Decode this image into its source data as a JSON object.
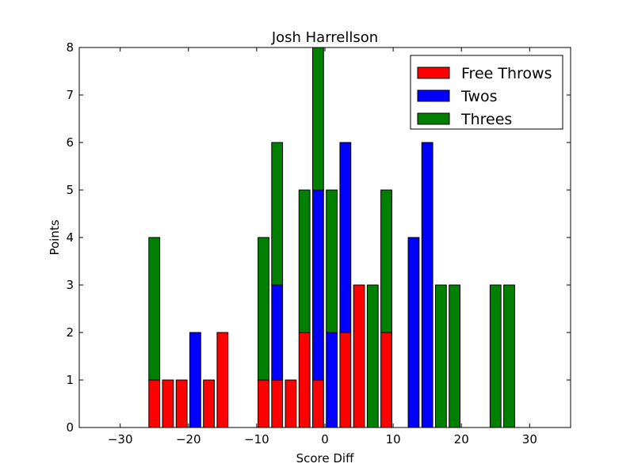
{
  "chart_data": {
    "type": "bar",
    "stacked": true,
    "title": "Josh Harrellson",
    "xlabel": "Score Diff",
    "ylabel": "Points",
    "xlim": [
      -36,
      36
    ],
    "ylim": [
      0,
      8
    ],
    "xticks": [
      -30,
      -20,
      -10,
      0,
      10,
      20,
      30
    ],
    "xtick_labels": [
      "−30",
      "−20",
      "−10",
      "0",
      "10",
      "20",
      "30"
    ],
    "yticks": [
      0,
      1,
      2,
      3,
      4,
      5,
      6,
      7,
      8
    ],
    "ytick_labels": [
      "0",
      "1",
      "2",
      "3",
      "4",
      "5",
      "6",
      "7",
      "8"
    ],
    "x": [
      -35,
      -33,
      -31,
      -29,
      -27,
      -25,
      -23,
      -21,
      -19,
      -17,
      -15,
      -13,
      -11,
      -9,
      -7,
      -5,
      -3,
      -1,
      1,
      3,
      5,
      7,
      9,
      11,
      13,
      15,
      17,
      19,
      21,
      23,
      25,
      27,
      29,
      31,
      33,
      35
    ],
    "series": [
      {
        "name": "Free Throws",
        "color": "#ff0000",
        "values": [
          0,
          0,
          0,
          0,
          0,
          1,
          1,
          1,
          0,
          1,
          2,
          0,
          0,
          1,
          1,
          1,
          2,
          1,
          0,
          2,
          3,
          0,
          2,
          0,
          0,
          0,
          0,
          0,
          0,
          0,
          0,
          0,
          0,
          0,
          0,
          0
        ]
      },
      {
        "name": "Twos",
        "color": "#0000ff",
        "values": [
          0,
          0,
          0,
          0,
          0,
          0,
          0,
          0,
          2,
          0,
          0,
          0,
          0,
          0,
          2,
          0,
          0,
          4,
          2,
          4,
          0,
          0,
          0,
          0,
          4,
          6,
          0,
          0,
          0,
          0,
          0,
          0,
          0,
          0,
          0,
          0
        ]
      },
      {
        "name": "Threes",
        "color": "#008000",
        "values": [
          0,
          0,
          0,
          0,
          0,
          3,
          0,
          0,
          0,
          0,
          0,
          0,
          0,
          3,
          3,
          0,
          3,
          3,
          3,
          0,
          0,
          3,
          3,
          0,
          0,
          0,
          3,
          3,
          0,
          0,
          3,
          3,
          0,
          0,
          0,
          0
        ]
      }
    ],
    "legend_position": "top-right",
    "grid": false
  }
}
